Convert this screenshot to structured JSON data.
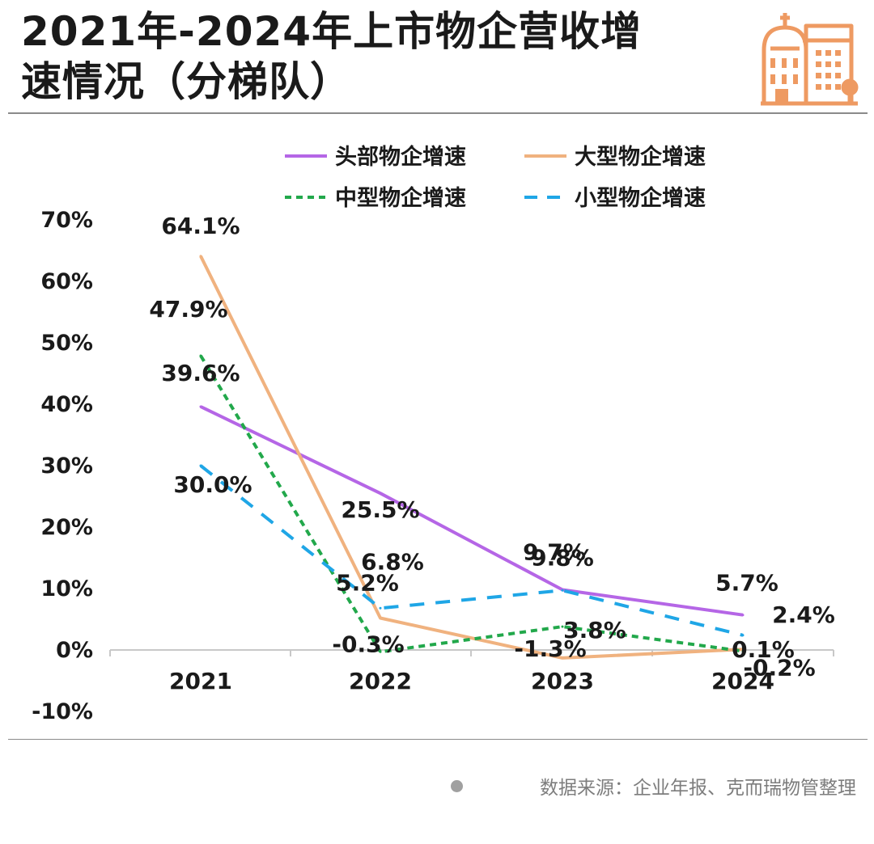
{
  "header": {
    "title_line1": "2021年-2024年上市物企营收增",
    "title_line2": "速情况（分梯队）",
    "logo_icon": "building-icon"
  },
  "source": {
    "text": "数据来源：企业年报、克而瑞物管整理"
  },
  "colors": {
    "head": "#b566e6",
    "large": "#f0b27f",
    "medium": "#22a84b",
    "small": "#1fa6e6",
    "logo": "#ee9a62",
    "axis": "#c8c8c8"
  },
  "chart_data": {
    "type": "line",
    "categories": [
      "2021",
      "2022",
      "2023",
      "2024"
    ],
    "y_ticks": [
      "70%",
      "60%",
      "50%",
      "40%",
      "30%",
      "20%",
      "10%",
      "0%",
      "-10%"
    ],
    "ylim": [
      -10,
      70
    ],
    "grid": false,
    "legend_position": "top",
    "series": [
      {
        "name": "头部物企增速",
        "values": [
          39.6,
          25.5,
          9.8,
          5.7
        ],
        "labels": [
          "39.6%",
          "25.5%",
          "9.8%",
          "5.7%"
        ],
        "style": "solid",
        "color": "#b566e6"
      },
      {
        "name": "大型物企增速",
        "values": [
          64.1,
          5.2,
          -1.3,
          0.1
        ],
        "labels": [
          "64.1%",
          "5.2%",
          "-1.3%",
          "0.1%"
        ],
        "style": "solid",
        "color": "#f0b27f"
      },
      {
        "name": "中型物企增速",
        "values": [
          47.9,
          -0.3,
          3.8,
          -0.2
        ],
        "labels": [
          "47.9%",
          "-0.3%",
          "3.8%",
          "-0.2%"
        ],
        "style": "dotted",
        "color": "#22a84b"
      },
      {
        "name": "小型物企增速",
        "values": [
          30.0,
          6.8,
          9.7,
          2.4
        ],
        "labels": [
          "30.0%",
          "6.8%",
          "9.7%",
          "2.4%"
        ],
        "style": "dashed",
        "color": "#1fa6e6"
      }
    ]
  }
}
